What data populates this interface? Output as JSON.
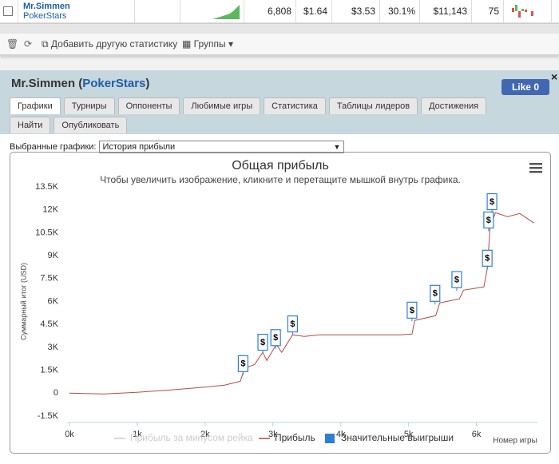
{
  "table": {
    "row": {
      "name": "Mr.Simmen",
      "site": "PokerStars",
      "cells": [
        "6,808",
        "$1.64",
        "$3.53",
        "30.1%",
        "$11,143",
        "75"
      ]
    }
  },
  "toolbar": {
    "add": "Добавить другую статистику",
    "groups": "Группы"
  },
  "header": {
    "title_open": "Mr.Simmen (",
    "site": "PokerStars",
    "title_close": ")",
    "like": "Like",
    "like_count": "0",
    "close": "×"
  },
  "tabs": [
    "Графики",
    "Турниры",
    "Оппоненты",
    "Любимые игры",
    "Статистика",
    "Таблицы лидеров",
    "Достижения",
    "Найти",
    "Опубликовать"
  ],
  "selector": {
    "label": "Выбранные графики:",
    "value": "История прибыли"
  },
  "chart_data": {
    "type": "line",
    "title": "Общая прибыль",
    "subtitle": "Чтобы увеличить изображение, кликните и перетащите мышкой внутрь графика.",
    "y_label": "Суммарный итог (USD)",
    "x_label": "Номер игры",
    "xlim": [
      0,
      6900
    ],
    "ylim": [
      -1500,
      13500
    ],
    "xticks": [
      {
        "value": 0,
        "label": "0k"
      },
      {
        "value": 1000,
        "label": "1k"
      },
      {
        "value": 2000,
        "label": "2k"
      },
      {
        "value": 3000,
        "label": "3k"
      },
      {
        "value": 4000,
        "label": "4k"
      },
      {
        "value": 5000,
        "label": "5k"
      },
      {
        "value": 6000,
        "label": "6k"
      }
    ],
    "yticks": [
      {
        "value": -1500,
        "label": "-1.5K"
      },
      0,
      {
        "value": 1500,
        "label": "1.5K"
      },
      {
        "value": 3000,
        "label": "3K"
      },
      {
        "value": 4500,
        "label": "4.5K"
      },
      {
        "value": 6000,
        "label": "6K"
      },
      {
        "value": 7500,
        "label": "7.5K"
      },
      {
        "value": 9000,
        "label": "9K"
      },
      {
        "value": 10500,
        "label": "10.5K"
      },
      {
        "value": 12000,
        "label": "12K"
      },
      {
        "value": 13500,
        "label": "13.5K"
      }
    ],
    "series": [
      {
        "name": "Прибыль за минусом рейка",
        "color": "#cccccc",
        "visible": false
      },
      {
        "name": "Прибыль",
        "color": "#b94a48",
        "x": [
          0,
          520,
          990,
          1460,
          1930,
          2280,
          2520,
          2580,
          2730,
          2850,
          2910,
          3050,
          3130,
          3290,
          3460,
          3690,
          4280,
          4870,
          5050,
          5090,
          5400,
          5460,
          5750,
          5810,
          6110,
          6160,
          6200,
          6280,
          6460,
          6640,
          6850
        ],
        "values": [
          0,
          -50,
          50,
          200,
          370,
          520,
          780,
          1620,
          1880,
          2670,
          2140,
          3190,
          2670,
          3820,
          3710,
          3820,
          3820,
          3820,
          3870,
          4760,
          5070,
          5910,
          6170,
          6740,
          6950,
          8150,
          10770,
          11810,
          11550,
          11760,
          11130
        ]
      },
      {
        "name": "Значительные выигрыши",
        "color": "#2f7ed8",
        "marker_label": "$",
        "x": [
          2560,
          2850,
          3040,
          3290,
          5050,
          5390,
          5710,
          6160,
          6180,
          6230
        ],
        "values": [
          1200,
          2600,
          2900,
          3800,
          4700,
          5800,
          6700,
          8100,
          10600,
          11800
        ]
      }
    ]
  }
}
